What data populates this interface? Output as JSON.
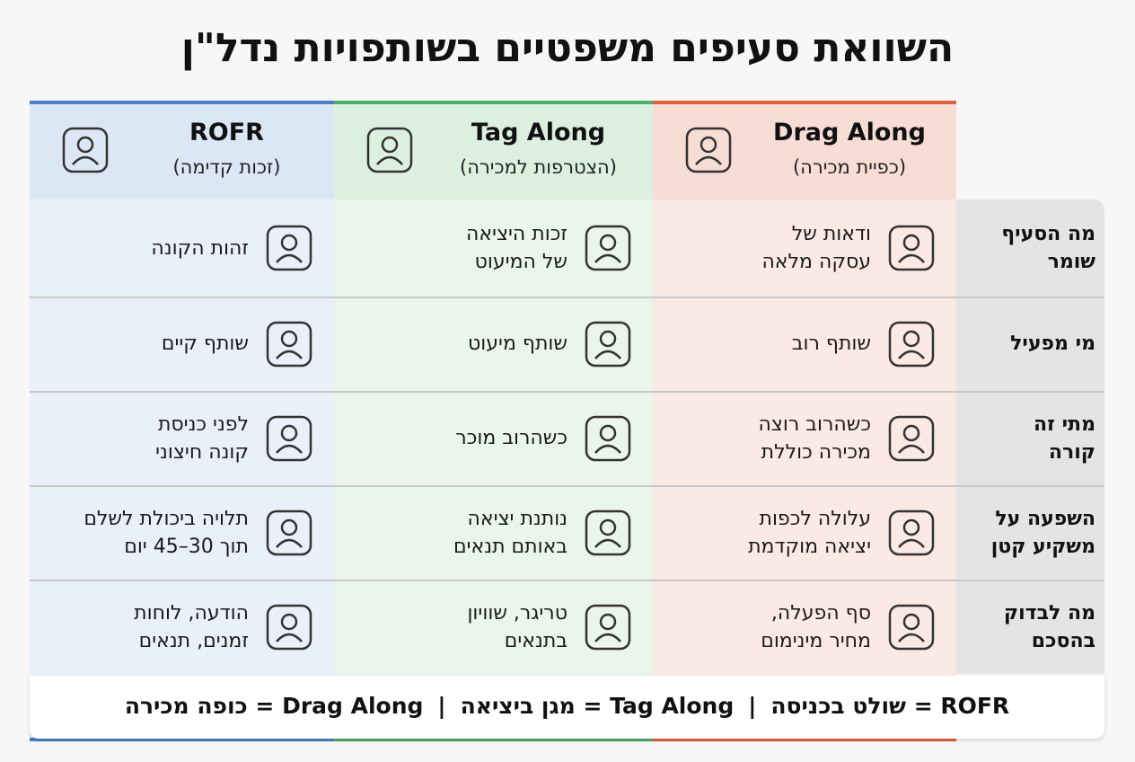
{
  "title": "השוואת סעיפים משפטיים בשותפויות נדל\"ן",
  "columns": [
    {
      "name": "Drag Along",
      "subtitle": "(כפיית מכירה)"
    },
    {
      "name": "Tag Along",
      "subtitle": "(הצטרפות למכירה)"
    },
    {
      "name": "ROFR",
      "subtitle": "(זכות קדימה)"
    }
  ],
  "rows": [
    {
      "label": [
        "מה הסעיף",
        "שומר"
      ],
      "cells": [
        [
          "ודאות של",
          "עסקה מלאה"
        ],
        [
          "זכות היציאה",
          "של המיעוט"
        ],
        [
          "זהות הקונה"
        ]
      ]
    },
    {
      "label": [
        "מי מפעיל"
      ],
      "cells": [
        [
          "שותף רוב"
        ],
        [
          "שותף מיעוט"
        ],
        [
          "שותף קיים"
        ]
      ]
    },
    {
      "label": [
        "מתי זה",
        "קורה"
      ],
      "cells": [
        [
          "כשהרוב רוצה",
          "מכירה כוללת"
        ],
        [
          "כשהרוב מוכר"
        ],
        [
          "לפני כניסת",
          "קונה חיצוני"
        ]
      ]
    },
    {
      "label": [
        "השפעה על",
        "משקיע קטן"
      ],
      "cells": [
        [
          "עלולה לכפות",
          "יציאה מוקדמת"
        ],
        [
          "נותנת יציאה",
          "באותם תנאים"
        ],
        [
          "תלויה ביכולת לשלם",
          "תוך 30–45 יום"
        ]
      ]
    },
    {
      "label": [
        "מה לבדוק",
        "בהסכם"
      ],
      "cells": [
        [
          "סף הפעלה,",
          "מחיר מינימום"
        ],
        [
          "טריגר, שוויון",
          "בתנאים"
        ],
        [
          "הודעה, לוחות",
          "זמנים, תנאים"
        ]
      ]
    }
  ],
  "footer": [
    "ROFR = שולט בכניסה",
    "Tag Along = מגן ביציאה",
    "Drag Along = כופה מכירה"
  ]
}
